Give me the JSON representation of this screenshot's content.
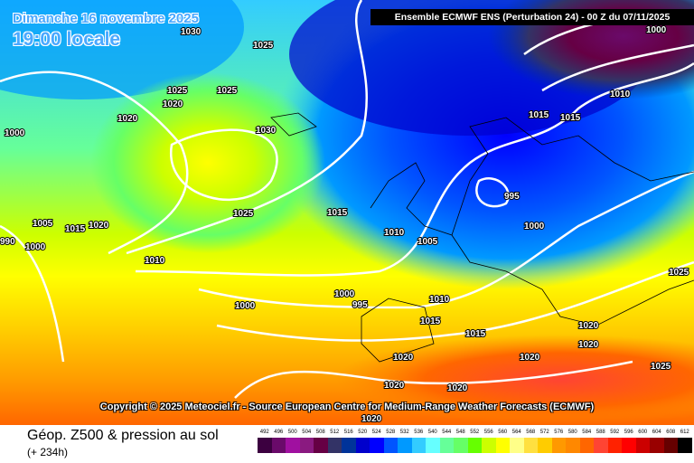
{
  "header": {
    "date": "Dimanche 16 novembre 2025",
    "local_time": "19:00 locale",
    "run_info": "Ensemble ECMWF ENS  (Perturbation 24)  -  00 Z du 07/11/2025"
  },
  "copyright": "Copyright © 2025 Meteociel.fr - Source European Centre for Medium-Range Weather Forecasts (ECMWF)",
  "footer": {
    "title": "Géop. Z500 & pression au sol",
    "lead_time": "(+ 234h)"
  },
  "legend": {
    "labels": [
      "492",
      "496",
      "500",
      "504",
      "508",
      "512",
      "516",
      "520",
      "524",
      "528",
      "532",
      "536",
      "540",
      "544",
      "548",
      "552",
      "556",
      "560",
      "564",
      "568",
      "572",
      "576",
      "580",
      "584",
      "588",
      "592",
      "596",
      "600",
      "604",
      "608",
      "612"
    ],
    "colors": [
      "#3c0040",
      "#6a0a6a",
      "#a010a0",
      "#8a1a80",
      "#660044",
      "#333366",
      "#003399",
      "#0000cc",
      "#0000ff",
      "#0055ff",
      "#0099ff",
      "#33ccff",
      "#66ffff",
      "#66ff99",
      "#66ff66",
      "#66ff00",
      "#ccff00",
      "#ffff00",
      "#ffff88",
      "#ffe040",
      "#ffcc00",
      "#ff9900",
      "#ff8800",
      "#ff6600",
      "#ff4433",
      "#ff2200",
      "#ff0000",
      "#cc0000",
      "#990000",
      "#660000",
      "#000000"
    ]
  },
  "isobar_labels": [
    "1030",
    "1025",
    "1025",
    "1025",
    "1020",
    "1030",
    "1000",
    "1005",
    "1015",
    "1020",
    "990",
    "1000",
    "1025",
    "1010",
    "1020",
    "1015",
    "1005",
    "995",
    "1000",
    "1010",
    "1015",
    "1015",
    "1000",
    "995",
    "1000",
    "1010",
    "1015",
    "1020",
    "1020",
    "1020",
    "1020",
    "1020",
    "1020",
    "1025",
    "1025",
    "1000",
    "1010",
    "1015",
    "1020"
  ]
}
